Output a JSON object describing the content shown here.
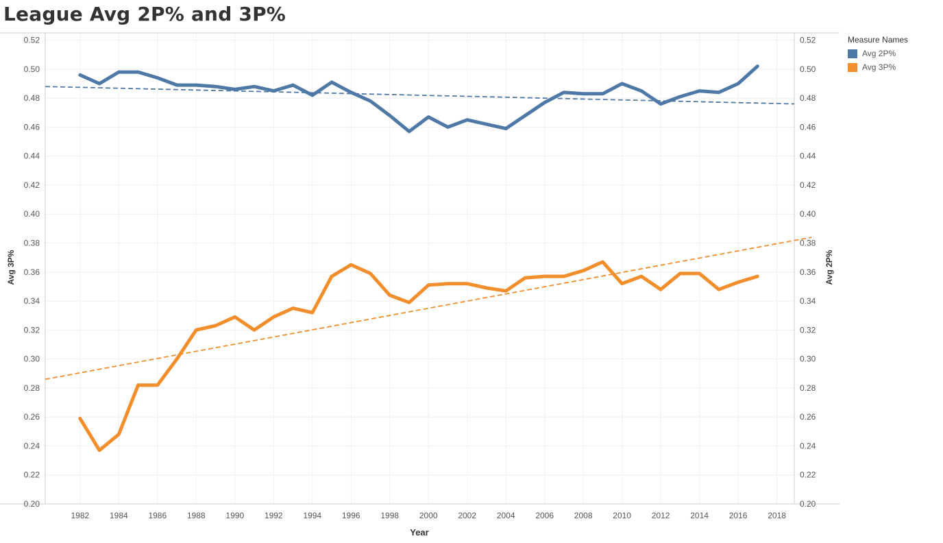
{
  "title": "League Avg 2P% and 3P%",
  "legend": {
    "title": "Measure Names",
    "items": [
      {
        "label": "Avg 2P%",
        "color": "#4e79a7"
      },
      {
        "label": "Avg 3P%",
        "color": "#f28e2b"
      }
    ]
  },
  "chart_data": {
    "type": "line",
    "title": "League Avg 2P% and 3P%",
    "xlabel": "Year",
    "ylabel_left": "Avg 3P%",
    "ylabel_right": "Avg 2P%",
    "xlim": [
      1980.2,
      2018.9
    ],
    "ylim": [
      0.2,
      0.525
    ],
    "x_ticks": [
      1982,
      1984,
      1986,
      1988,
      1990,
      1992,
      1994,
      1996,
      1998,
      2000,
      2002,
      2004,
      2006,
      2008,
      2010,
      2012,
      2014,
      2016,
      2018
    ],
    "y_ticks": [
      0.2,
      0.22,
      0.24,
      0.26,
      0.28,
      0.3,
      0.32,
      0.34,
      0.36,
      0.38,
      0.4,
      0.42,
      0.44,
      0.46,
      0.48,
      0.5,
      0.52
    ],
    "y_tick_labels": [
      "0.20",
      "0.22",
      "0.24",
      "0.26",
      "0.28",
      "0.30",
      "0.32",
      "0.34",
      "0.36",
      "0.38",
      "0.40",
      "0.42",
      "0.44",
      "0.46",
      "0.48",
      "0.50",
      "0.52"
    ],
    "grid": true,
    "legend_position": "right",
    "x": [
      1982,
      1983,
      1984,
      1985,
      1986,
      1987,
      1988,
      1989,
      1990,
      1991,
      1992,
      1993,
      1994,
      1995,
      1996,
      1997,
      1998,
      1999,
      2000,
      2001,
      2002,
      2003,
      2004,
      2005,
      2006,
      2007,
      2008,
      2009,
      2010,
      2011,
      2012,
      2013,
      2014,
      2015,
      2016,
      2017
    ],
    "series": [
      {
        "name": "Avg 2P%",
        "color": "#4e79a7",
        "values": [
          0.496,
          0.49,
          0.498,
          0.498,
          0.494,
          0.489,
          0.489,
          0.488,
          0.486,
          0.488,
          0.485,
          0.489,
          0.482,
          0.491,
          0.484,
          0.478,
          0.468,
          0.457,
          0.467,
          0.46,
          0.465,
          0.462,
          0.459,
          0.468,
          0.477,
          0.484,
          0.483,
          0.483,
          0.49,
          0.485,
          0.476,
          0.481,
          0.485,
          0.484,
          0.49,
          0.502
        ],
        "trend": [
          [
            1980.2,
            0.488
          ],
          [
            2018.9,
            0.476
          ]
        ]
      },
      {
        "name": "Avg 3P%",
        "color": "#f28e2b",
        "values": [
          0.259,
          0.237,
          0.248,
          0.282,
          0.282,
          0.3,
          0.32,
          0.323,
          0.329,
          0.32,
          0.329,
          0.335,
          0.332,
          0.357,
          0.365,
          0.359,
          0.344,
          0.339,
          0.351,
          0.352,
          0.352,
          0.349,
          0.347,
          0.356,
          0.357,
          0.357,
          0.361,
          0.367,
          0.352,
          0.357,
          0.348,
          0.359,
          0.359,
          0.348,
          0.353,
          0.357
        ],
        "trend": [
          [
            1980.2,
            0.286
          ],
          [
            2019.8,
            0.384
          ]
        ]
      }
    ]
  }
}
